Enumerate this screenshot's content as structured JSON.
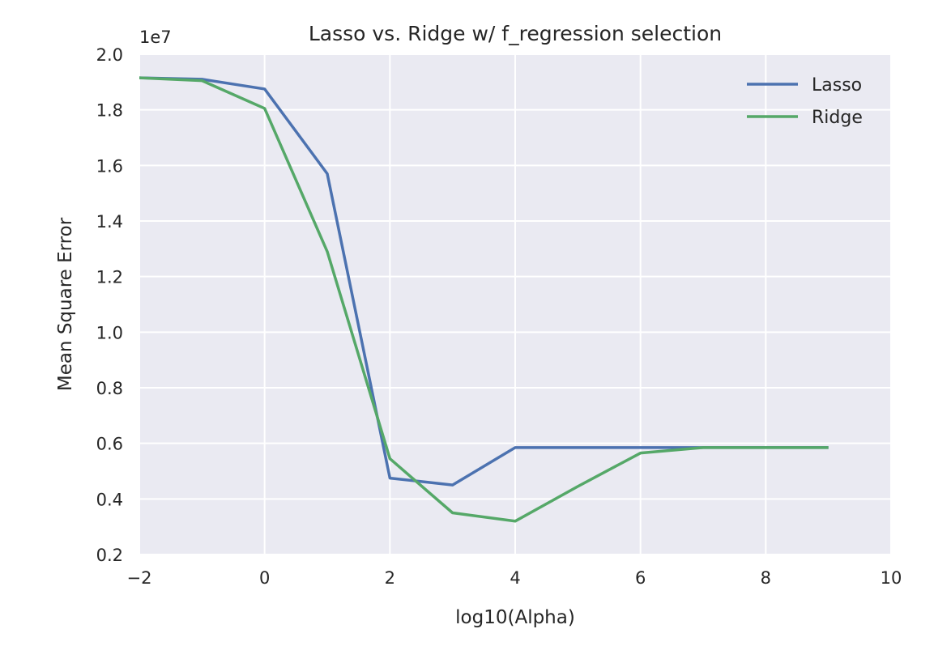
{
  "chart_data": {
    "type": "line",
    "title": "Lasso vs. Ridge w/ f_regression selection",
    "xlabel": "log10(Alpha)",
    "ylabel": "Mean Square Error",
    "y_offset_label": "1e7",
    "xlim": [
      -2,
      10
    ],
    "ylim": [
      0.2,
      2.0
    ],
    "x_ticks": [
      "−2",
      "0",
      "2",
      "4",
      "6",
      "8",
      "10"
    ],
    "y_ticks": [
      "0.2",
      "0.4",
      "0.6",
      "0.8",
      "1.0",
      "1.2",
      "1.4",
      "1.6",
      "1.8",
      "2.0"
    ],
    "grid": true,
    "legend_position": "top-right",
    "background_color": "#EAEAF2",
    "grid_color": "#FFFFFF",
    "series": [
      {
        "name": "Lasso",
        "color": "#4C72B0",
        "x": [
          -2,
          -1,
          0,
          1,
          2,
          3,
          4,
          5,
          6,
          7,
          8,
          9
        ],
        "y": [
          1.915,
          1.91,
          1.875,
          1.57,
          0.475,
          0.45,
          0.585,
          0.585,
          0.585,
          0.585,
          0.585,
          0.585
        ]
      },
      {
        "name": "Ridge",
        "color": "#55A868",
        "x": [
          -2,
          -1,
          0,
          1,
          2,
          3,
          4,
          5,
          6,
          7,
          8,
          9
        ],
        "y": [
          1.915,
          1.905,
          1.805,
          1.29,
          0.545,
          0.35,
          0.32,
          0.445,
          0.565,
          0.585,
          0.585,
          0.585
        ]
      }
    ]
  }
}
